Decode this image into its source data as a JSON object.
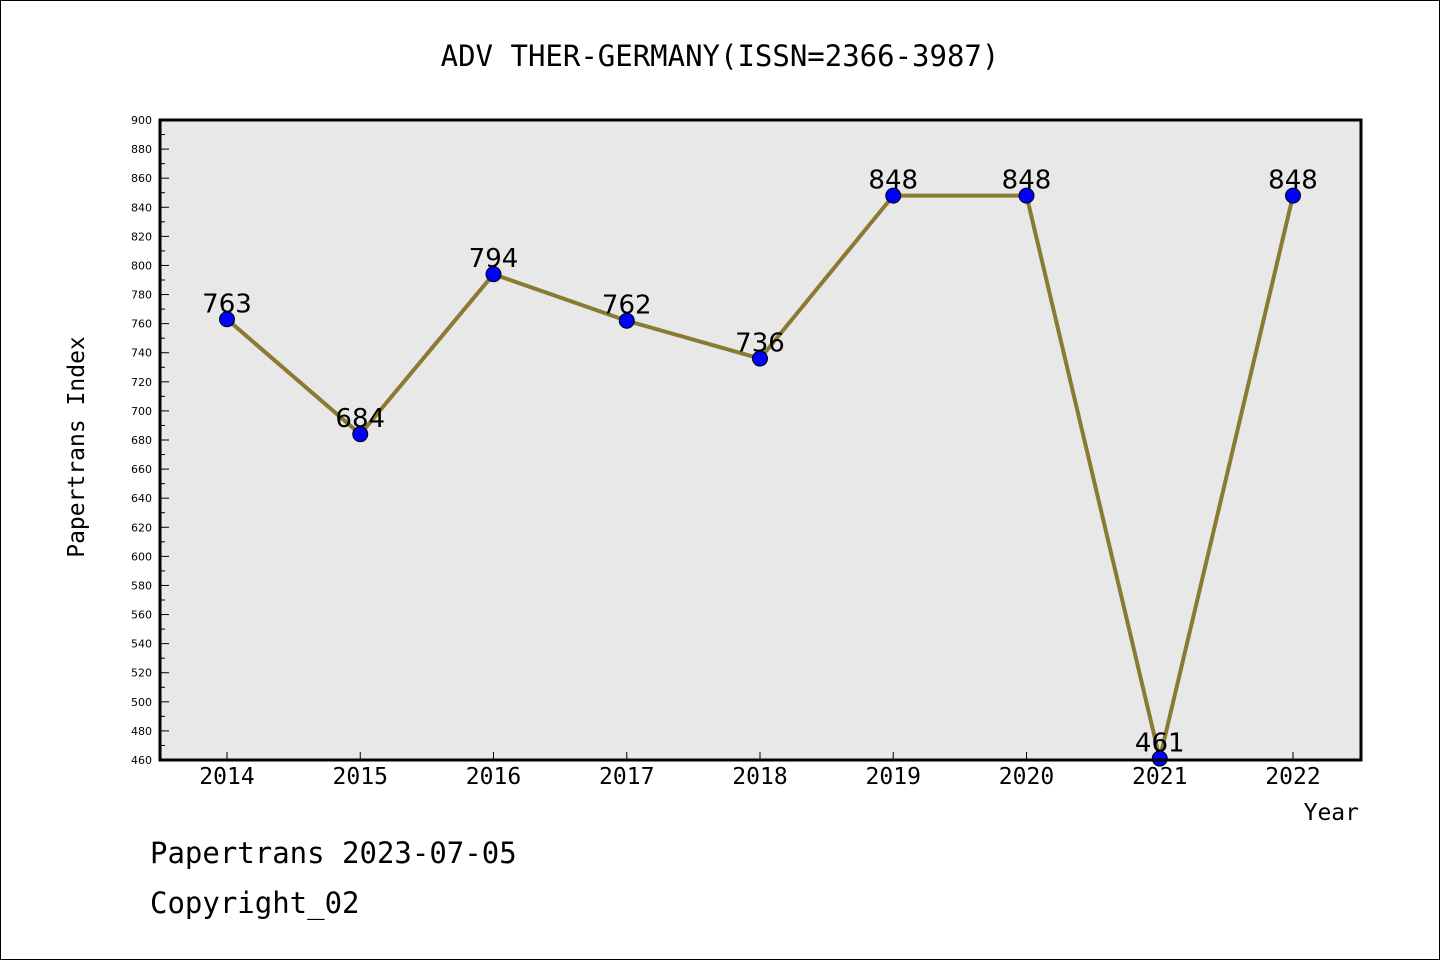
{
  "chart_data": {
    "type": "line",
    "title": "ADV THER-GERMANY(ISSN=2366-3987)",
    "xlabel": "Year",
    "ylabel": "Papertrans Index",
    "categories": [
      "2014",
      "2015",
      "2016",
      "2017",
      "2018",
      "2019",
      "2020",
      "2021",
      "2022"
    ],
    "series": [
      {
        "values": [
          763,
          684,
          794,
          762,
          736,
          848,
          848,
          461,
          848
        ],
        "line_color": "#8b7a33",
        "marker_color": "#0000ff"
      }
    ],
    "data_labels": [
      "763",
      "684",
      "794",
      "762",
      "736",
      "848",
      "848",
      "461",
      "848"
    ],
    "ylim": [
      460,
      900
    ],
    "ytick_step": 20,
    "plot_background": "#e8e8e8",
    "grid": false,
    "legend": "none"
  },
  "footer": {
    "line1": "Papertrans 2023-07-05",
    "line2": "Copyright_02"
  }
}
